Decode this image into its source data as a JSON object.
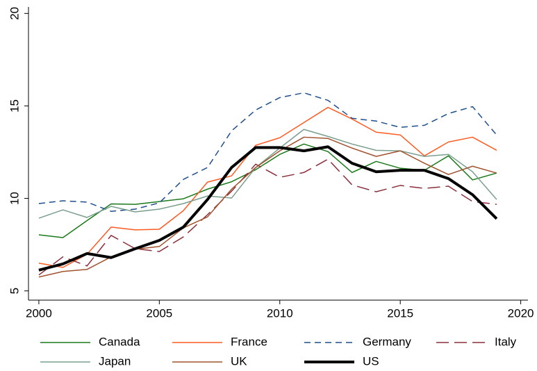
{
  "chart_data": {
    "type": "line",
    "x": [
      2000,
      2001,
      2002,
      2003,
      2004,
      2005,
      2006,
      2007,
      2008,
      2009,
      2010,
      2011,
      2012,
      2013,
      2014,
      2015,
      2016,
      2017,
      2018,
      2019
    ],
    "xlim": [
      1999.57,
      2020.3
    ],
    "xticks": [
      2000,
      2005,
      2010,
      2015,
      2020
    ],
    "ylim": [
      4.5,
      20.35
    ],
    "yticks": [
      5,
      10,
      15,
      20
    ],
    "grid": false,
    "legend": "bottom",
    "series": [
      {
        "name": "Canada",
        "color": "#1a7a1a",
        "dash": "solid",
        "width": 1.5,
        "values": [
          8.03,
          7.88,
          8.8,
          9.7,
          9.68,
          9.83,
          9.98,
          10.5,
          10.9,
          11.55,
          12.38,
          12.94,
          12.53,
          11.4,
          12.0,
          11.63,
          11.52,
          12.3,
          11.0,
          11.37
        ]
      },
      {
        "name": "France",
        "color": "#ff5a1f",
        "dash": "solid",
        "width": 1.5,
        "values": [
          6.5,
          6.27,
          6.98,
          8.45,
          8.3,
          8.33,
          9.34,
          10.88,
          11.22,
          12.87,
          13.28,
          14.1,
          14.92,
          14.29,
          13.58,
          13.43,
          12.3,
          13.05,
          13.31,
          12.6
        ]
      },
      {
        "name": "Germany",
        "color": "#1f4e8c",
        "dash": "short",
        "width": 1.5,
        "values": [
          9.72,
          9.87,
          9.8,
          9.3,
          9.42,
          9.76,
          11.03,
          11.67,
          13.65,
          14.78,
          15.45,
          15.71,
          15.3,
          14.33,
          14.18,
          13.84,
          13.95,
          14.59,
          14.96,
          13.43
        ]
      },
      {
        "name": "Italy",
        "color": "#8b2f3c",
        "dash": "long",
        "width": 1.5,
        "values": [
          5.86,
          6.84,
          6.35,
          8.0,
          7.28,
          7.13,
          7.92,
          9.12,
          10.39,
          11.85,
          11.14,
          11.4,
          12.12,
          10.73,
          10.36,
          10.7,
          10.54,
          10.66,
          9.83,
          9.68
        ]
      },
      {
        "name": "Japan",
        "color": "#7a9e8e",
        "dash": "solid",
        "width": 1.5,
        "values": [
          8.93,
          9.38,
          8.97,
          9.57,
          9.27,
          9.42,
          9.72,
          10.13,
          10.02,
          11.67,
          12.72,
          13.73,
          13.35,
          12.94,
          12.6,
          12.57,
          12.27,
          12.38,
          11.44,
          9.94
        ]
      },
      {
        "name": "UK",
        "color": "#a0522d",
        "dash": "solid",
        "width": 1.5,
        "values": [
          5.75,
          6.05,
          6.16,
          6.84,
          7.25,
          7.4,
          8.41,
          9.0,
          10.5,
          11.67,
          12.57,
          13.31,
          13.24,
          12.72,
          12.27,
          12.57,
          11.9,
          11.29,
          11.74,
          11.37
        ]
      },
      {
        "name": "US",
        "color": "#000000",
        "dash": "solid",
        "width": 4,
        "values": [
          6.12,
          6.46,
          7.02,
          6.8,
          7.28,
          7.73,
          8.45,
          9.94,
          11.67,
          12.75,
          12.75,
          12.57,
          12.79,
          11.9,
          11.44,
          11.52,
          11.52,
          11.07,
          10.2,
          8.9
        ]
      }
    ]
  }
}
